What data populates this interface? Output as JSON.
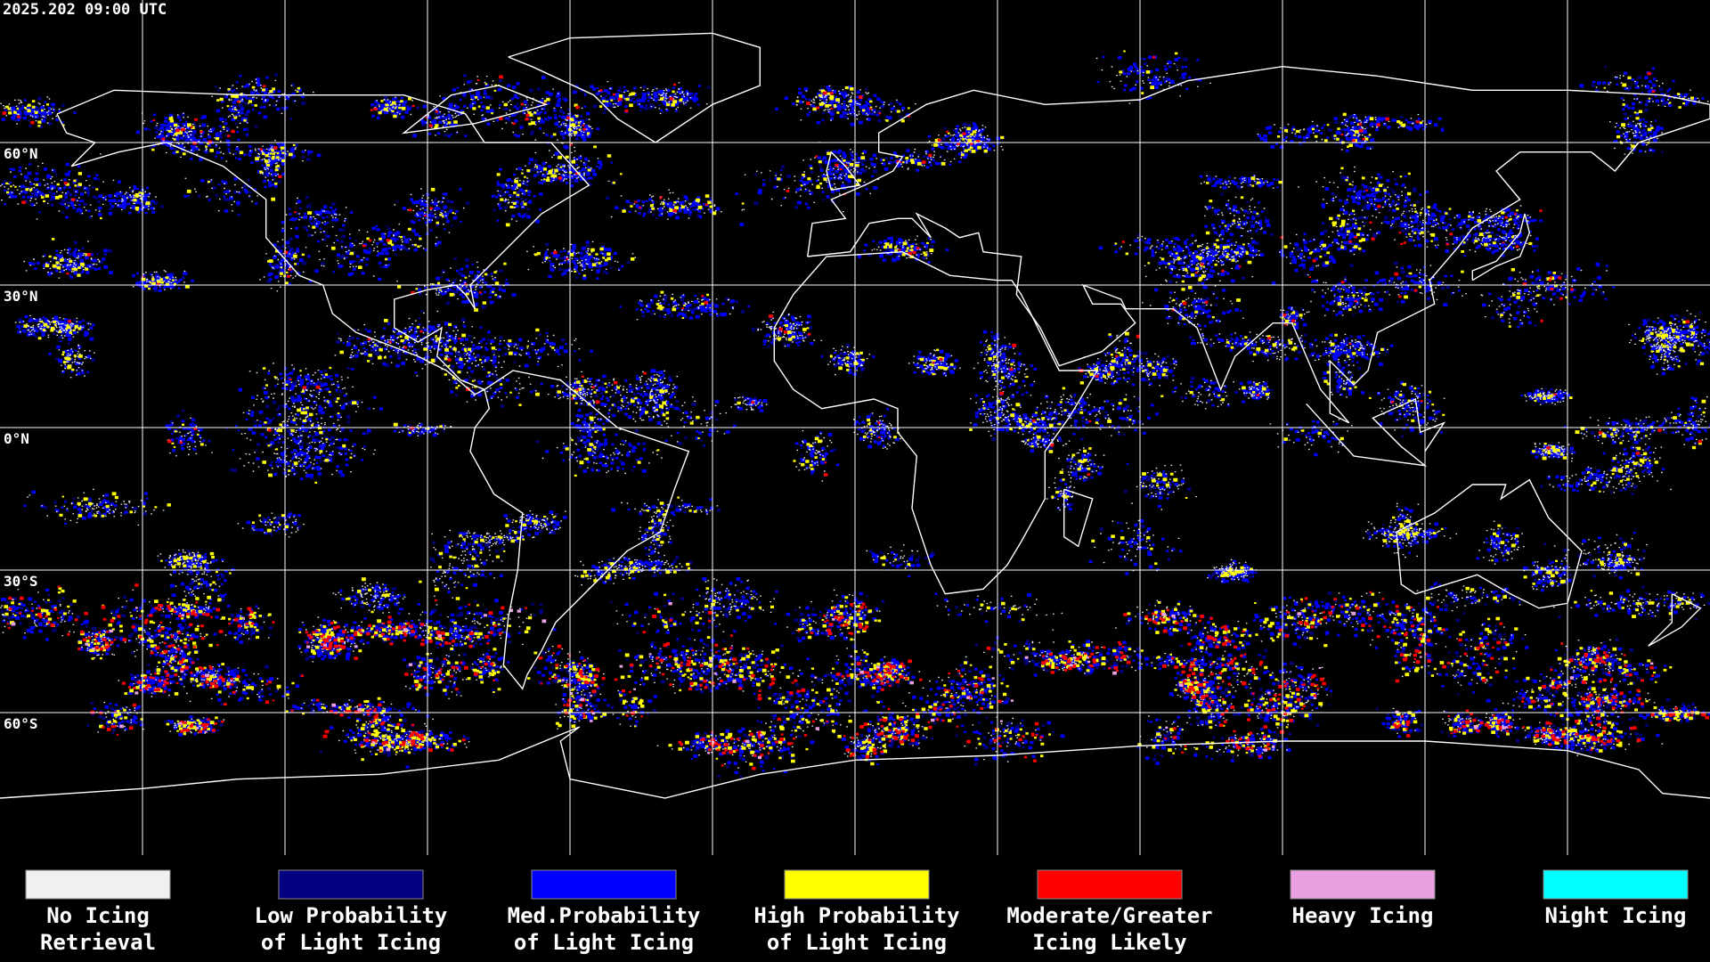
{
  "header": {
    "timestamp": "2025.202 09:00 UTC"
  },
  "map": {
    "lat_labels": [
      "60°N",
      "30°N",
      "0°N",
      "30°S",
      "60°S"
    ]
  },
  "legend": {
    "items": [
      {
        "label_lines": [
          "No Icing",
          "Retrieval"
        ],
        "color": "#f0f0f0"
      },
      {
        "label_lines": [
          "Low Probability",
          "of Light Icing"
        ],
        "color": "#000080"
      },
      {
        "label_lines": [
          "Med.Probability",
          "of Light Icing"
        ],
        "color": "#0000ff"
      },
      {
        "label_lines": [
          "High Probability",
          "of Light Icing"
        ],
        "color": "#ffff00"
      },
      {
        "label_lines": [
          "Moderate/Greater",
          "Icing Likely"
        ],
        "color": "#ff0000"
      },
      {
        "label_lines": [
          "Heavy Icing"
        ],
        "color": "#e8a0e0"
      },
      {
        "label_lines": [
          "Night Icing"
        ],
        "color": "#00ffff"
      }
    ]
  }
}
